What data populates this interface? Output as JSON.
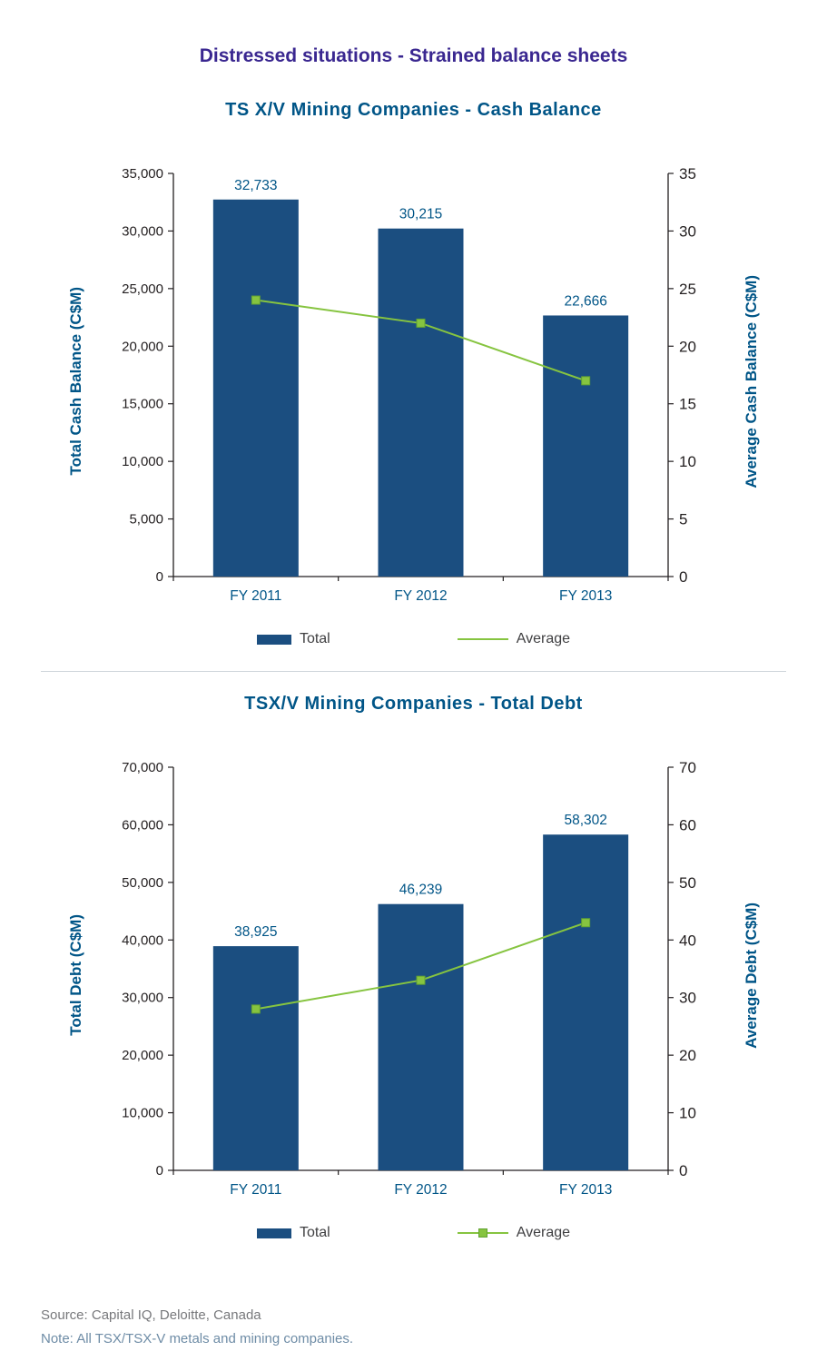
{
  "page": {
    "title": "Distressed situations - Strained balance sheets",
    "footer": {
      "source": "Source: Capital IQ, Deloitte, Canada",
      "note": "Note: All TSX/TSX-V metals and mining companies."
    }
  },
  "theme": {
    "title_color": "#3a2790",
    "chart_title_color": "#005587",
    "bar_color": "#1b4e80",
    "line_color": "#86c440",
    "marker_fill": "#86c440",
    "marker_stroke": "#62a332",
    "axis_color": "#231f20",
    "tick_color": "#231f20",
    "value_label_color": "#005587",
    "category_color": "#005587",
    "source_color": "#77787b",
    "note_color": "#6e8ca6",
    "divider_color": "#cfd6db"
  },
  "chart_data": [
    {
      "type": "bar",
      "subtype": "bar-line-combo",
      "title": "TS X/V Mining Companies - Cash Balance",
      "categories": [
        "FY 2011",
        "FY 2012",
        "FY 2013"
      ],
      "series": [
        {
          "name": "Total",
          "type": "bar",
          "axis": "left",
          "values": [
            32733,
            30215,
            22666
          ]
        },
        {
          "name": "Average",
          "type": "line",
          "axis": "right",
          "values": [
            24,
            22,
            17
          ]
        }
      ],
      "left_axis": {
        "label": "Total Cash Balance (C$M)",
        "min": 0,
        "max": 35000,
        "step": 5000
      },
      "right_axis": {
        "label": "Average Cash Balance (C$M)",
        "min": 0,
        "max": 35,
        "step": 5
      },
      "grid": false,
      "legend_position": "bottom",
      "legend": [
        {
          "label": "Total",
          "swatch": "bar",
          "marker": false
        },
        {
          "label": "Average",
          "swatch": "line",
          "marker": false
        }
      ]
    },
    {
      "type": "bar",
      "subtype": "bar-line-combo",
      "title": "TSX/V Mining Companies - Total Debt",
      "categories": [
        "FY 2011",
        "FY 2012",
        "FY 2013"
      ],
      "series": [
        {
          "name": "Total",
          "type": "bar",
          "axis": "left",
          "values": [
            38925,
            46239,
            58302
          ]
        },
        {
          "name": "Average",
          "type": "line",
          "axis": "right",
          "values": [
            28,
            33,
            43
          ]
        }
      ],
      "left_axis": {
        "label": "Total Debt (C$M)",
        "min": 0,
        "max": 70000,
        "step": 10000
      },
      "right_axis": {
        "label": "Average Debt (C$M)",
        "min": 0,
        "max": 70,
        "step": 10
      },
      "grid": false,
      "legend_position": "bottom",
      "legend": [
        {
          "label": "Total",
          "swatch": "bar",
          "marker": false
        },
        {
          "label": "Average",
          "swatch": "line",
          "marker": true
        }
      ]
    }
  ]
}
